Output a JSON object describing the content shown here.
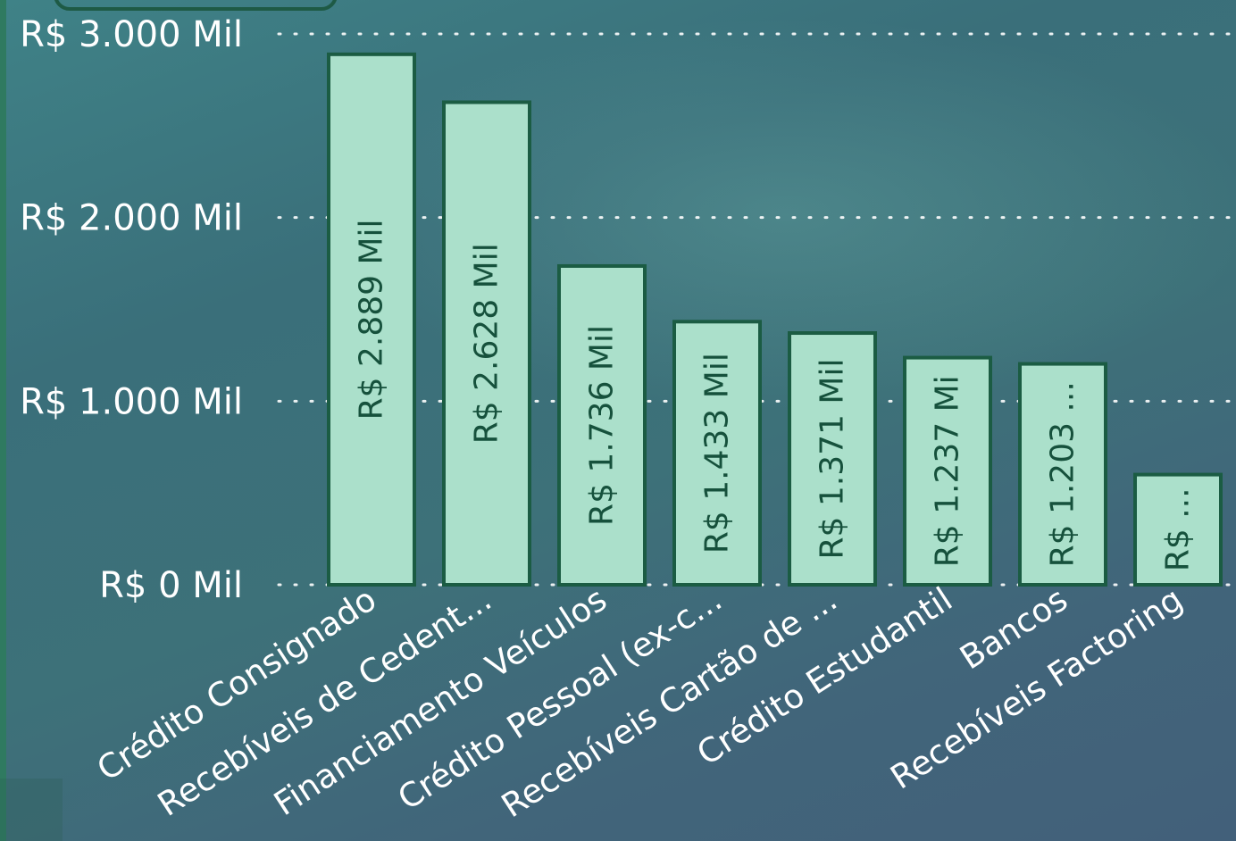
{
  "chart_data": {
    "type": "bar",
    "categories": [
      "Crédito Consignado",
      "Recebíveis de Cedent...",
      "Financiamento Veículos",
      "Crédito Pessoal (ex-c...",
      "Recebíveis Cartão de ...",
      "Crédito Estudantil",
      "Bancos",
      "Recebíveis Factoring"
    ],
    "values": [
      2889,
      2628,
      1736,
      1433,
      1371,
      1237,
      1203,
      600
    ],
    "data_labels": [
      "R$ 2.889 Mil",
      "R$ 2.628 Mil",
      "R$ 1.736 Mil",
      "R$ 1.433 Mil",
      "R$ 1.371 Mil",
      "R$ 1.237 Mi",
      "R$ 1.203 ...",
      "R$ ..."
    ],
    "yticks": [
      0,
      1000,
      2000,
      3000
    ],
    "ytick_labels": [
      "R$ 0 Mil",
      "R$ 1.000 Mil",
      "R$ 2.000 Mil",
      "R$ 3.000 Mil"
    ],
    "ylim": [
      0,
      3000
    ],
    "grid": "dotted horizontal",
    "title": "",
    "xlabel": "",
    "ylabel": "",
    "colors": {
      "bar_fill": "#abe0cb",
      "bar_stroke": "#1b5c43",
      "bar_label": "#16513c",
      "axis_text": "#ffffff",
      "grid": "#ffffff"
    }
  }
}
